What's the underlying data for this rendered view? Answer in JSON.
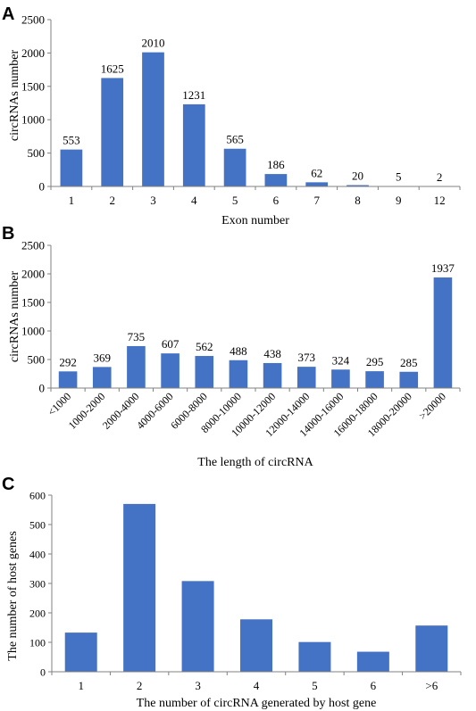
{
  "bar_color": "#4472C4",
  "chart_data": [
    {
      "type": "bar",
      "panel_label": "A",
      "categories": [
        "1",
        "2",
        "3",
        "4",
        "5",
        "6",
        "7",
        "8",
        "9",
        "12"
      ],
      "values": [
        553,
        1625,
        2010,
        1231,
        565,
        186,
        62,
        20,
        5,
        2
      ],
      "data_labels": [
        "553",
        "1625",
        "2010",
        "1231",
        "565",
        "186",
        "62",
        "20",
        "5",
        "2"
      ],
      "xlabel": "Exon number",
      "ylabel": "circRNAs number",
      "ylim": [
        0,
        2500
      ],
      "yticks": [
        "0",
        "500",
        "1000",
        "1500",
        "2000",
        "2500"
      ],
      "grid": false
    },
    {
      "type": "bar",
      "panel_label": "B",
      "categories": [
        "<1000",
        "1000-2000",
        "2000-4000",
        "4000-6000",
        "6000-8000",
        "8000-10000",
        "10000-12000",
        "12000-14000",
        "14000-16000",
        "16000-18000",
        "18000-20000",
        ">20000"
      ],
      "values": [
        292,
        369,
        735,
        607,
        562,
        488,
        438,
        373,
        324,
        295,
        285,
        1937
      ],
      "data_labels": [
        "292",
        "369",
        "735",
        "607",
        "562",
        "488",
        "438",
        "373",
        "324",
        "295",
        "285",
        "1937"
      ],
      "xlabel": "The length of circRNA",
      "ylabel": "circRNAs number",
      "ylim": [
        0,
        2500
      ],
      "yticks": [
        "0",
        "500",
        "1000",
        "1500",
        "2000",
        "2500"
      ],
      "grid": false
    },
    {
      "type": "bar",
      "panel_label": "C",
      "categories": [
        "1",
        "2",
        "3",
        "4",
        "5",
        "6",
        ">6"
      ],
      "values": [
        133,
        570,
        308,
        178,
        101,
        68,
        157
      ],
      "xlabel": "The number of circRNA generated by host gene",
      "ylabel": "The number of host genes",
      "ylim": [
        0,
        600
      ],
      "yticks": [
        "0",
        "100",
        "200",
        "300",
        "400",
        "500",
        "600"
      ],
      "grid": false
    }
  ]
}
